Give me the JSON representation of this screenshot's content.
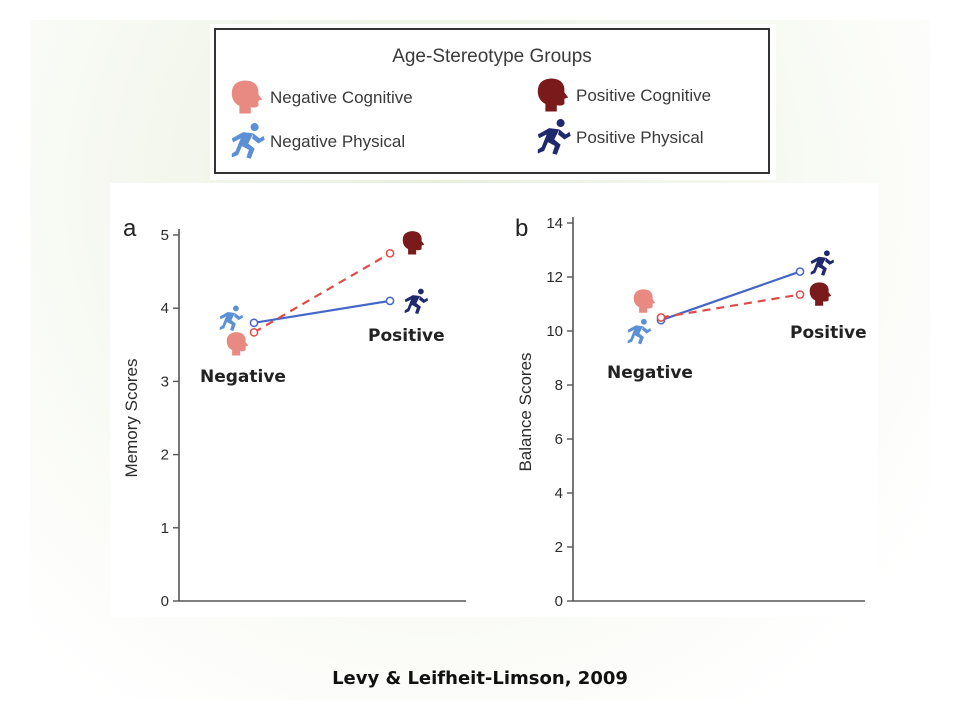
{
  "legend": {
    "title": "Age-Stereotype Groups",
    "items": [
      {
        "label": "Negative Cognitive",
        "icon": "head-icon",
        "color": "#e88a82"
      },
      {
        "label": "Positive Cognitive",
        "icon": "head-icon",
        "color": "#7a1a1a"
      },
      {
        "label": "Negative Physical",
        "icon": "runner-icon",
        "color": "#5b8fd6"
      },
      {
        "label": "Positive Physical",
        "icon": "runner-icon",
        "color": "#1f2a6e"
      }
    ]
  },
  "colors": {
    "cognitive_line": "#e04a4a",
    "physical_line": "#4566c8",
    "negative_cognitive": "#e88a82",
    "positive_cognitive": "#7a1a1a",
    "negative_physical": "#5b8fd6",
    "positive_physical": "#1f2a6e"
  },
  "chart_data": [
    {
      "type": "line",
      "panel_label": "a",
      "ylabel": "Memory Scores",
      "ylim": [
        0,
        5
      ],
      "yticks": [
        "0",
        "1",
        "2",
        "3",
        "4",
        "5"
      ],
      "categories": [
        "Negative",
        "Positive"
      ],
      "series": [
        {
          "name": "Negative Physical / Positive Physical",
          "style": "solid",
          "values": [
            3.8,
            4.1
          ]
        },
        {
          "name": "Negative Cognitive / Positive Cognitive",
          "style": "dashed",
          "values": [
            3.67,
            4.75
          ]
        }
      ]
    },
    {
      "type": "line",
      "panel_label": "b",
      "ylabel": "Balance Scores",
      "ylim": [
        0,
        14
      ],
      "yticks": [
        "0",
        "2",
        "4",
        "6",
        "8",
        "10",
        "12",
        "14"
      ],
      "categories": [
        "Negative",
        "Positive"
      ],
      "series": [
        {
          "name": "Negative Physical / Positive Physical",
          "style": "solid",
          "values": [
            10.4,
            12.2
          ]
        },
        {
          "name": "Negative Cognitive / Positive Cognitive",
          "style": "dashed",
          "values": [
            10.5,
            11.35
          ]
        }
      ]
    }
  ],
  "citation": "Levy & Leifheit-Limson, 2009"
}
